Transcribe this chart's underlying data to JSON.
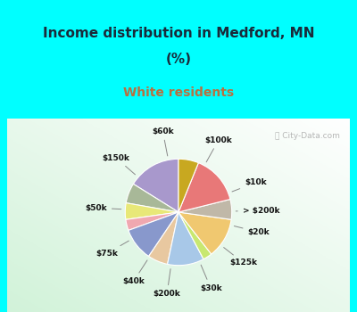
{
  "title_line1": "Income distribution in Medford, MN",
  "title_line2": "(%)",
  "subtitle": "White residents",
  "title_color": "#1a2a3a",
  "subtitle_color": "#b87040",
  "cyan_bg": "#00ffff",
  "watermark": "ⓘ City-Data.com",
  "slices": [
    {
      "label": "$100k",
      "value": 14.5,
      "color": "#a898cc"
    },
    {
      "label": "$10k",
      "value": 5.5,
      "color": "#a8b898"
    },
    {
      "label": "> $200k",
      "value": 4.5,
      "color": "#e8e878"
    },
    {
      "label": "$20k",
      "value": 3.0,
      "color": "#f0a8b0"
    },
    {
      "label": "$125k",
      "value": 9.0,
      "color": "#8898cc"
    },
    {
      "label": "$30k",
      "value": 5.5,
      "color": "#e8c8a0"
    },
    {
      "label": "$200k",
      "value": 10.0,
      "color": "#a8c8e8"
    },
    {
      "label": "$40k",
      "value": 2.5,
      "color": "#c8e870"
    },
    {
      "label": "$75k",
      "value": 11.0,
      "color": "#f0c870"
    },
    {
      "label": "$50k",
      "value": 5.5,
      "color": "#c0b8a8"
    },
    {
      "label": "$150k",
      "value": 13.5,
      "color": "#e87878"
    },
    {
      "label": "$60k",
      "value": 5.5,
      "color": "#c8a820"
    }
  ],
  "figsize": [
    4.0,
    3.5
  ],
  "dpi": 100
}
